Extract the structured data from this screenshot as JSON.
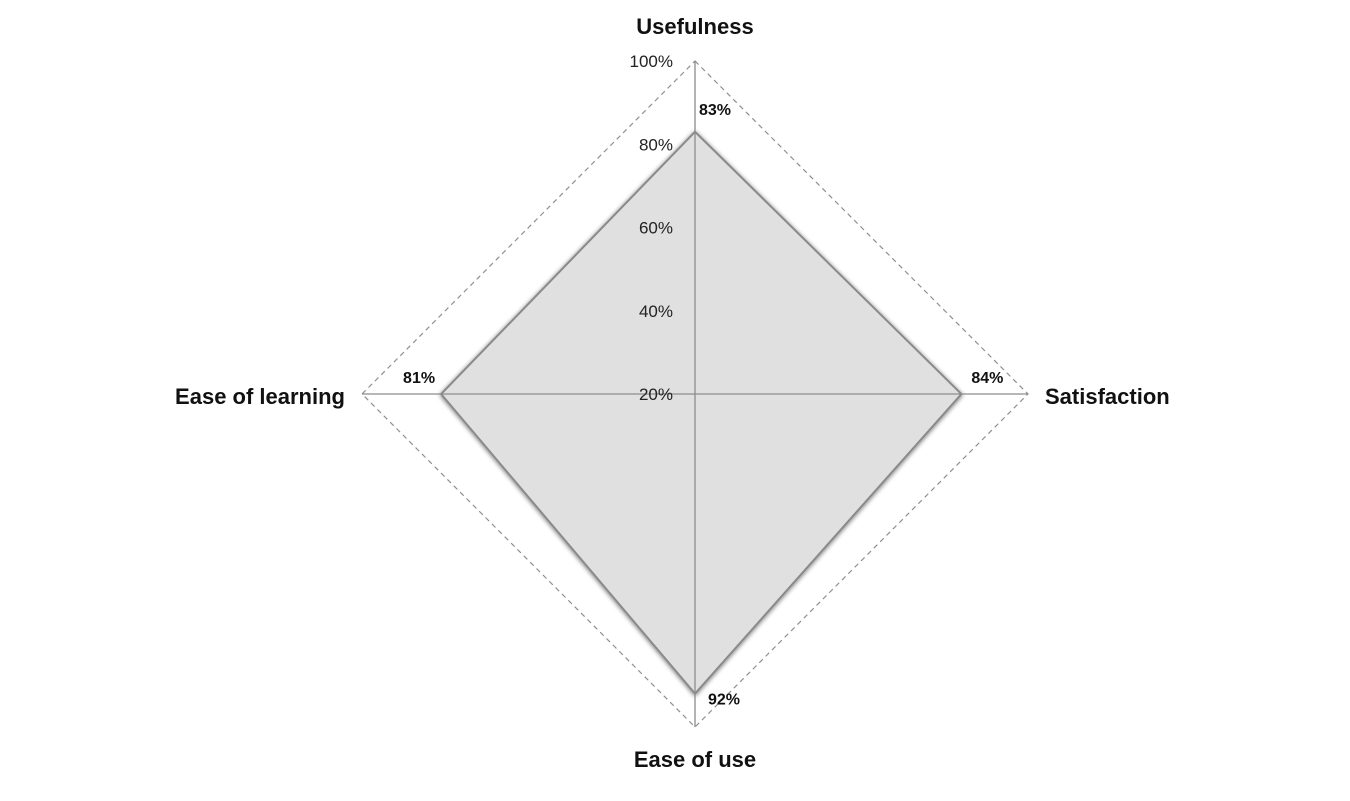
{
  "chart_data": {
    "type": "radar",
    "axes": [
      "Usefulness",
      "Satisfaction",
      "Ease of use",
      "Ease of learning"
    ],
    "values": [
      83,
      84,
      92,
      81
    ],
    "value_labels": [
      "83%",
      "84%",
      "92%",
      "81%"
    ],
    "radial_ticks": [
      20,
      40,
      60,
      80,
      100
    ],
    "radial_tick_labels": [
      "20%",
      "40%",
      "60%",
      "80%",
      "100%"
    ],
    "rmin": 20,
    "rmax": 100,
    "grid": "outer dashed boundary only",
    "legend": "none",
    "fill_color": "#e0e0e0",
    "stroke_color": "#8a8a8a"
  }
}
